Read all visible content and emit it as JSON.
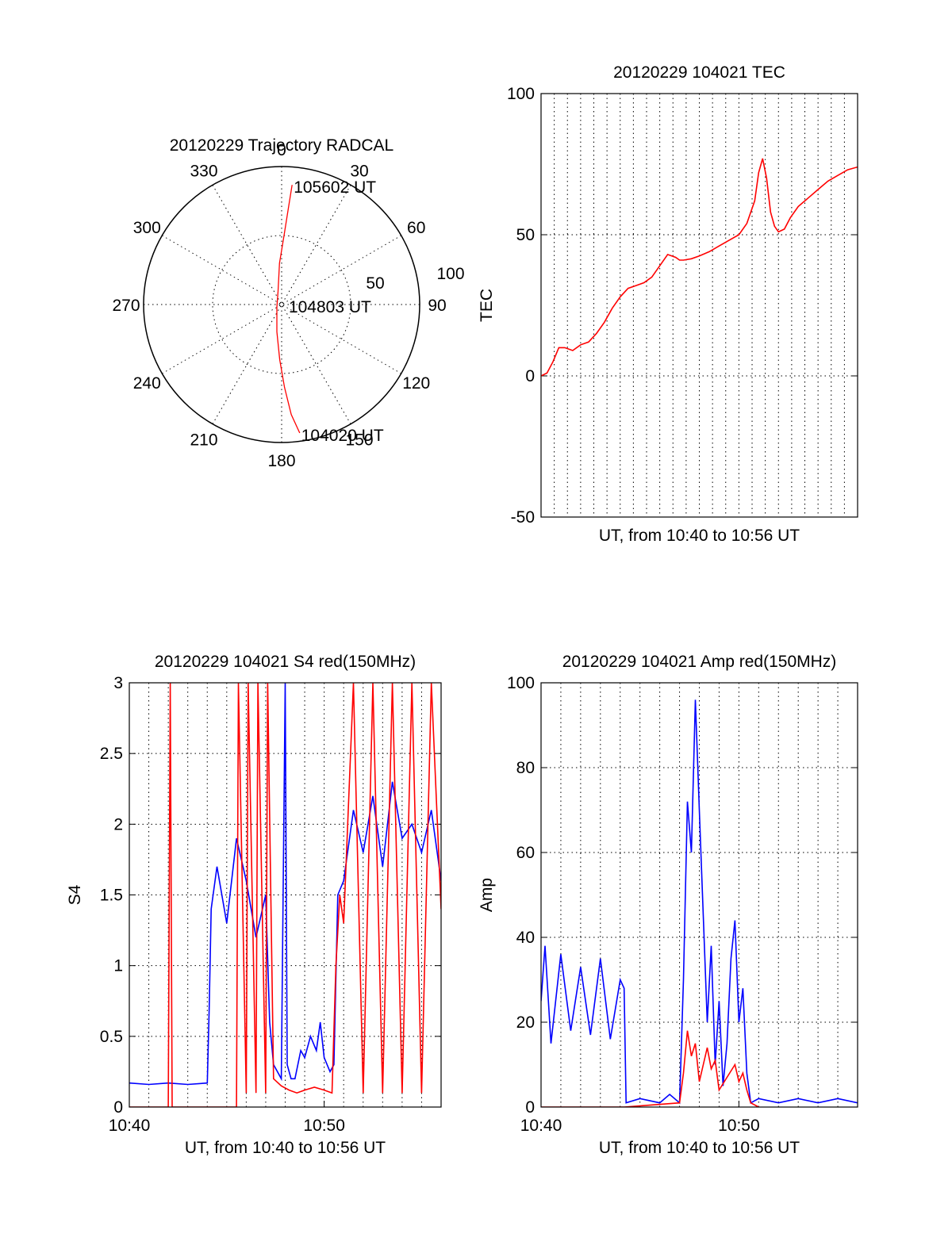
{
  "chart_data": [
    {
      "type": "polar",
      "title": "20120229 Trajectory RADCAL",
      "azimuth_labels": [
        {
          "angle": 0,
          "text": "0"
        },
        {
          "angle": 30,
          "text": "30"
        },
        {
          "angle": 60,
          "text": "60"
        },
        {
          "angle": 90,
          "text": "90"
        },
        {
          "angle": 120,
          "text": "120"
        },
        {
          "angle": 150,
          "text": "150"
        },
        {
          "angle": 180,
          "text": "180"
        },
        {
          "angle": 210,
          "text": "210"
        },
        {
          "angle": 240,
          "text": "240"
        },
        {
          "angle": 270,
          "text": "270"
        },
        {
          "angle": 300,
          "text": "300"
        },
        {
          "angle": 330,
          "text": "330"
        }
      ],
      "radial_ticks": [
        "50",
        "100"
      ],
      "radial_max": 100,
      "track_color": "#ff0000",
      "track": [
        {
          "az": 172,
          "zen": 94
        },
        {
          "az": 175,
          "zen": 80
        },
        {
          "az": 178,
          "zen": 60
        },
        {
          "az": 182,
          "zen": 40
        },
        {
          "az": 190,
          "zen": 20
        },
        {
          "az": 240,
          "zen": 4
        },
        {
          "az": 345,
          "zen": 10
        },
        {
          "az": 357,
          "zen": 30
        },
        {
          "az": 2,
          "zen": 50
        },
        {
          "az": 4,
          "zen": 70
        },
        {
          "az": 5,
          "zen": 87
        }
      ],
      "annotations": [
        {
          "text": "105602 UT",
          "az": 5,
          "zen": 87
        },
        {
          "text": "104803 UT",
          "az": 90,
          "zen": 4
        },
        {
          "text": "104020 UT",
          "az": 172,
          "zen": 94
        }
      ]
    },
    {
      "type": "line",
      "title": "20120229 104021 TEC",
      "xlabel": "UT, from 10:40 to 10:56 UT",
      "ylabel": "TEC",
      "xlim": [
        0,
        16
      ],
      "ylim": [
        -50,
        100
      ],
      "yticks": [
        "-50",
        "0",
        "50",
        "100"
      ],
      "series": [
        {
          "color": "#ff0000",
          "x": [
            0,
            0.3,
            0.6,
            0.9,
            1.2,
            1.6,
            2.0,
            2.4,
            2.8,
            3.2,
            3.6,
            4.0,
            4.4,
            4.8,
            5.2,
            5.6,
            6.0,
            6.4,
            6.8,
            7.0,
            7.2,
            7.6,
            8.0,
            8.5,
            9.0,
            9.5,
            10.0,
            10.4,
            10.8,
            11.0,
            11.2,
            11.4,
            11.6,
            11.8,
            12.0,
            12.3,
            12.6,
            13.0,
            13.5,
            14.0,
            14.5,
            15.0,
            15.5,
            16.0
          ],
          "y": [
            0,
            1,
            5,
            10,
            10,
            9,
            11,
            12,
            15,
            19,
            24,
            28,
            31,
            32,
            33,
            35,
            39,
            43,
            42,
            41,
            41,
            41.5,
            42.5,
            44,
            46,
            48,
            50,
            54,
            62,
            72,
            77,
            70,
            58,
            53,
            51,
            52,
            56,
            60,
            63,
            66,
            69,
            71,
            73,
            74
          ]
        }
      ]
    },
    {
      "type": "line",
      "title": "20120229 104021 S4 red(150MHz)",
      "xlabel": "UT, from 10:40 to 10:56 UT",
      "ylabel": "S4",
      "xlim": [
        0,
        16
      ],
      "ylim": [
        0,
        3
      ],
      "yticks": [
        "0",
        "0.5",
        "1",
        "1.5",
        "2",
        "2.5",
        "3"
      ],
      "xticks": [
        {
          "value": 0,
          "label": "10:40"
        },
        {
          "value": 10,
          "label": "10:50"
        }
      ],
      "series": [
        {
          "color": "#0000ff",
          "x": [
            0,
            1,
            2,
            3,
            4,
            4.1,
            4.2,
            4.5,
            5.0,
            5.5,
            6.0,
            6.5,
            7.0,
            7.2,
            7.4,
            7.8,
            8.0,
            8.1,
            8.3,
            8.5,
            8.8,
            9.0,
            9.3,
            9.6,
            9.8,
            10.0,
            10.3,
            10.5,
            10.7,
            11.0,
            11.5,
            12.0,
            12.5,
            13.0,
            13.5,
            14.0,
            14.5,
            15.0,
            15.5,
            16.0
          ],
          "y": [
            0.17,
            0.16,
            0.17,
            0.16,
            0.17,
            0.7,
            1.4,
            1.7,
            1.3,
            1.9,
            1.6,
            1.2,
            1.5,
            0.6,
            0.3,
            0.2,
            3.0,
            0.3,
            0.2,
            0.2,
            0.4,
            0.35,
            0.5,
            0.4,
            0.6,
            0.35,
            0.25,
            0.3,
            1.5,
            1.6,
            2.1,
            1.8,
            2.2,
            1.7,
            2.3,
            1.9,
            2.0,
            1.8,
            2.1,
            1.6
          ]
        },
        {
          "color": "#ff0000",
          "x": [
            0,
            2.0,
            2.1,
            2.2,
            2.3,
            5.5,
            5.6,
            6.0,
            6.1,
            6.5,
            6.6,
            7.0,
            7.1,
            7.4,
            7.8,
            8.2,
            8.6,
            9.0,
            9.5,
            10.0,
            10.4,
            10.6,
            10.8,
            11.0,
            11.5,
            12.0,
            12.5,
            13.0,
            13.5,
            14.0,
            14.5,
            15.0,
            15.5,
            16.0
          ],
          "y": [
            0,
            0,
            3.0,
            0,
            0,
            0,
            3.0,
            0.1,
            3.0,
            0.1,
            3.0,
            0.1,
            3.0,
            0.2,
            0.15,
            0.12,
            0.1,
            0.12,
            0.14,
            0.12,
            0.1,
            1.0,
            1.5,
            1.3,
            3.0,
            0.1,
            3.0,
            0.1,
            3.0,
            0.1,
            3.0,
            0.1,
            3.0,
            1.4
          ]
        }
      ]
    },
    {
      "type": "line",
      "title": "20120229 104021 Amp red(150MHz)",
      "xlabel": "UT, from 10:40 to 10:56 UT",
      "ylabel": "Amp",
      "xlim": [
        0,
        16
      ],
      "ylim": [
        0,
        100
      ],
      "yticks": [
        "0",
        "20",
        "40",
        "60",
        "80",
        "100"
      ],
      "xticks": [
        {
          "value": 0,
          "label": "10:40"
        },
        {
          "value": 10,
          "label": "10:50"
        }
      ],
      "series": [
        {
          "color": "#0000ff",
          "x": [
            0,
            0.2,
            0.5,
            1.0,
            1.5,
            2.0,
            2.5,
            3.0,
            3.5,
            4.0,
            4.2,
            4.3,
            5.0,
            6.0,
            6.5,
            7.0,
            7.2,
            7.4,
            7.6,
            7.8,
            8.0,
            8.2,
            8.4,
            8.6,
            8.8,
            9.0,
            9.2,
            9.4,
            9.6,
            9.8,
            10.0,
            10.2,
            10.4,
            10.6,
            11.0,
            12.0,
            13.0,
            14.0,
            15.0,
            16.0
          ],
          "y": [
            25,
            38,
            15,
            36,
            18,
            33,
            17,
            35,
            16,
            30,
            28,
            1,
            2,
            1,
            3,
            1,
            30,
            72,
            60,
            96,
            70,
            45,
            20,
            38,
            10,
            25,
            5,
            15,
            35,
            44,
            20,
            28,
            8,
            1,
            2,
            1,
            2,
            1,
            2,
            1
          ]
        },
        {
          "color": "#ff0000",
          "x": [
            0,
            4.2,
            7.0,
            7.2,
            7.4,
            7.6,
            7.8,
            8.0,
            8.2,
            8.4,
            8.6,
            8.8,
            9.0,
            9.4,
            9.8,
            10.0,
            10.2,
            10.4,
            10.6,
            11.0
          ],
          "y": [
            0,
            0,
            1,
            8,
            18,
            12,
            15,
            6,
            10,
            14,
            9,
            11,
            4,
            7,
            10,
            6,
            8,
            4,
            1,
            0
          ]
        }
      ]
    }
  ]
}
